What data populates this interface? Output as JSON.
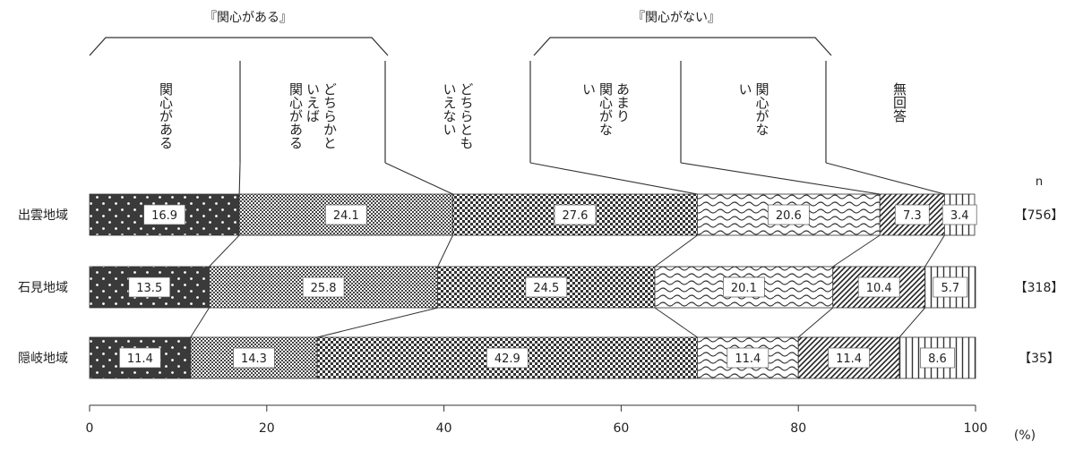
{
  "group_labels": {
    "interested": "『関心がある』",
    "not_interested": "『関心がない』"
  },
  "n_label": "n",
  "x_unit": "(%)",
  "chart_data": {
    "type": "bar",
    "orientation": "horizontal",
    "stacked": true,
    "categories": [
      "出雲地域",
      "石見地域",
      "隠岐地域"
    ],
    "sample_sizes": [
      "【756】",
      "【318】",
      "【35】"
    ],
    "series": [
      {
        "name": "関心がある",
        "values": [
          16.9,
          13.5,
          11.4
        ]
      },
      {
        "name": "どちらかといえば関心がある",
        "values": [
          24.1,
          25.8,
          14.3
        ]
      },
      {
        "name": "どちらともいえない",
        "values": [
          27.6,
          24.5,
          42.9
        ]
      },
      {
        "name": "あまり関心がない",
        "values": [
          20.6,
          20.1,
          11.4
        ]
      },
      {
        "name": "関心がない",
        "values": [
          7.3,
          10.4,
          11.4
        ]
      },
      {
        "name": "無回答",
        "values": [
          3.4,
          5.7,
          8.6
        ]
      }
    ],
    "xlim": [
      0,
      100
    ],
    "xticks": [
      0,
      20,
      40,
      60,
      80,
      100
    ],
    "grid": false,
    "legend": "top"
  }
}
